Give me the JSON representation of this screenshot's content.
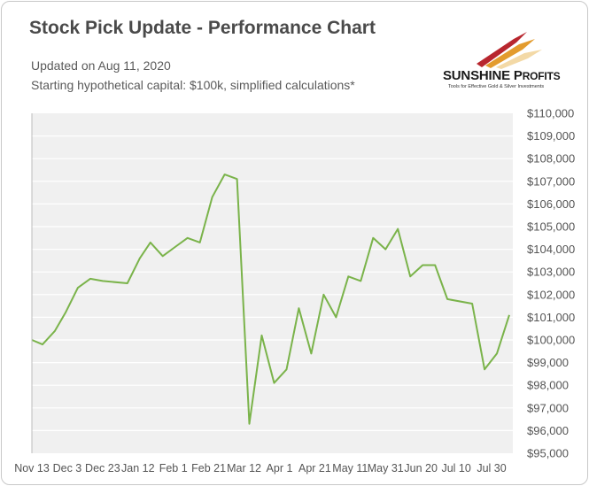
{
  "header": {
    "title": "Stock Pick Update - Performance Chart",
    "updated": "Updated on Aug 11, 2020",
    "note": "Starting hypothetical capital: $100k, simplified calculations*"
  },
  "logo": {
    "name_big": "SUNSHINE P",
    "name_small": "ROFITS",
    "tagline": "Tools for Effective Gold & Silver Investments",
    "colors": [
      "#b8262e",
      "#e39b2d",
      "#f3d9a6"
    ]
  },
  "colors": {
    "line": "#7ab34a",
    "plot_background": "#f0f0f0",
    "grid": "#ffffff"
  },
  "chart_data": {
    "type": "line",
    "title": "Stock Pick Update - Performance Chart",
    "xlabel": "",
    "ylabel": "",
    "ylim": [
      95000,
      110000
    ],
    "y_ticks": [
      "$95,000",
      "$96,000",
      "$97,000",
      "$98,000",
      "$99,000",
      "$100,000",
      "$101,000",
      "$102,000",
      "$103,000",
      "$104,000",
      "$105,000",
      "$106,000",
      "$107,000",
      "$108,000",
      "$109,000",
      "$110,000"
    ],
    "x_ticks": [
      "Nov 13",
      "Dec 3",
      "Dec 23",
      "Jan 12",
      "Feb 1",
      "Feb 21",
      "Mar 12",
      "Apr 1",
      "Apr 21",
      "May 11",
      "May 31",
      "Jun 20",
      "Jul 10",
      "Jul 30"
    ],
    "x_range": [
      "2019-11-13",
      "2020-08-11"
    ],
    "grid": true,
    "legend": "none",
    "series": [
      {
        "values": [
          {
            "x": "2019-11-13",
            "y": 100000
          },
          {
            "x": "2019-11-19",
            "y": 99800
          },
          {
            "x": "2019-11-26",
            "y": 100400
          },
          {
            "x": "2019-12-02",
            "y": 101200
          },
          {
            "x": "2019-12-09",
            "y": 102300
          },
          {
            "x": "2019-12-16",
            "y": 102700
          },
          {
            "x": "2019-12-23",
            "y": 102600
          },
          {
            "x": "2020-01-06",
            "y": 102500
          },
          {
            "x": "2020-01-13",
            "y": 103600
          },
          {
            "x": "2020-01-19",
            "y": 104300
          },
          {
            "x": "2020-01-26",
            "y": 103700
          },
          {
            "x": "2020-02-02",
            "y": 104100
          },
          {
            "x": "2020-02-09",
            "y": 104500
          },
          {
            "x": "2020-02-16",
            "y": 104300
          },
          {
            "x": "2020-02-23",
            "y": 106300
          },
          {
            "x": "2020-03-01",
            "y": 107300
          },
          {
            "x": "2020-03-08",
            "y": 107100
          },
          {
            "x": "2020-03-15",
            "y": 96300
          },
          {
            "x": "2020-03-22",
            "y": 100200
          },
          {
            "x": "2020-03-29",
            "y": 98100
          },
          {
            "x": "2020-04-05",
            "y": 98700
          },
          {
            "x": "2020-04-12",
            "y": 101400
          },
          {
            "x": "2020-04-19",
            "y": 99400
          },
          {
            "x": "2020-04-26",
            "y": 102000
          },
          {
            "x": "2020-05-03",
            "y": 101000
          },
          {
            "x": "2020-05-10",
            "y": 102800
          },
          {
            "x": "2020-05-17",
            "y": 102600
          },
          {
            "x": "2020-05-24",
            "y": 104500
          },
          {
            "x": "2020-05-31",
            "y": 104000
          },
          {
            "x": "2020-06-07",
            "y": 104900
          },
          {
            "x": "2020-06-14",
            "y": 102800
          },
          {
            "x": "2020-06-21",
            "y": 103300
          },
          {
            "x": "2020-06-28",
            "y": 103300
          },
          {
            "x": "2020-07-05",
            "y": 101800
          },
          {
            "x": "2020-07-19",
            "y": 101600
          },
          {
            "x": "2020-07-26",
            "y": 98700
          },
          {
            "x": "2020-08-02",
            "y": 99400
          },
          {
            "x": "2020-08-09",
            "y": 101100
          }
        ]
      }
    ]
  }
}
